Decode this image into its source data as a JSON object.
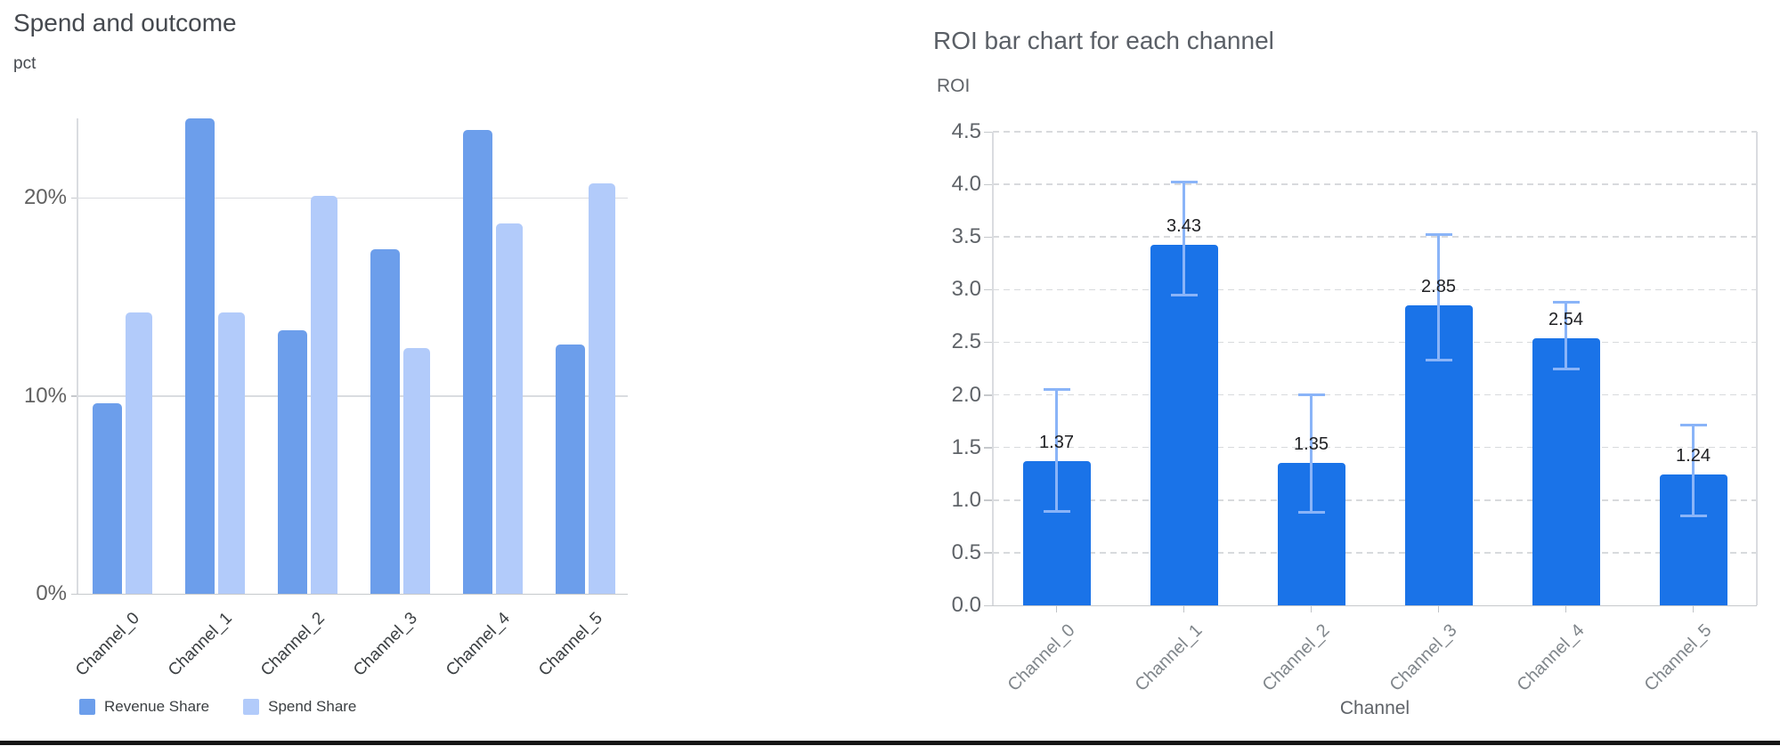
{
  "chart_data": [
    {
      "type": "bar",
      "title": "Spend and outcome",
      "ylabel": "pct",
      "xlabel": "",
      "categories": [
        "Channel_0",
        "Channel_1",
        "Channel_2",
        "Channel_3",
        "Channel_4",
        "Channel_5"
      ],
      "series": [
        {
          "name": "Revenue Share",
          "color": "#6c9eeb",
          "values": [
            9.6,
            24.0,
            13.3,
            17.4,
            23.4,
            12.6
          ]
        },
        {
          "name": "Spend Share",
          "color": "#b2cbfa",
          "values": [
            14.2,
            14.2,
            20.1,
            12.4,
            18.7,
            20.7
          ]
        }
      ],
      "y_ticks": [
        {
          "value": 0,
          "label": "0%"
        },
        {
          "value": 10,
          "label": "10%"
        },
        {
          "value": 20,
          "label": "20%"
        }
      ],
      "ylim": [
        0,
        24.0
      ],
      "grid": "horizontal-solid",
      "legend_position": "bottom-left"
    },
    {
      "type": "bar",
      "title": "ROI bar chart for each channel",
      "ylabel": "ROI",
      "xlabel": "Channel",
      "categories": [
        "Channel_0",
        "Channel_1",
        "Channel_2",
        "Channel_3",
        "Channel_4",
        "Channel_5"
      ],
      "series": [
        {
          "name": "ROI",
          "color": "#1a73e8",
          "values": [
            1.37,
            3.43,
            1.35,
            2.85,
            2.54,
            1.24
          ]
        }
      ],
      "value_labels": [
        "1.37",
        "3.43",
        "1.35",
        "2.85",
        "2.54",
        "1.24"
      ],
      "error_bars": {
        "color": "#8ab4f8",
        "low": [
          0.89,
          2.95,
          0.88,
          2.33,
          2.25,
          0.85
        ],
        "high": [
          2.05,
          4.02,
          2.0,
          3.52,
          2.88,
          1.71
        ]
      },
      "y_ticks": [
        {
          "value": 0.0,
          "label": "0.0"
        },
        {
          "value": 0.5,
          "label": "0.5"
        },
        {
          "value": 1.0,
          "label": "1.0"
        },
        {
          "value": 1.5,
          "label": "1.5"
        },
        {
          "value": 2.0,
          "label": "2.0"
        },
        {
          "value": 2.5,
          "label": "2.5"
        },
        {
          "value": 3.0,
          "label": "3.0"
        },
        {
          "value": 3.5,
          "label": "3.5"
        },
        {
          "value": 4.0,
          "label": "4.0"
        },
        {
          "value": 4.5,
          "label": "4.5"
        }
      ],
      "ylim": [
        0,
        4.5
      ],
      "grid": "horizontal-dashed",
      "legend_position": "none"
    }
  ]
}
